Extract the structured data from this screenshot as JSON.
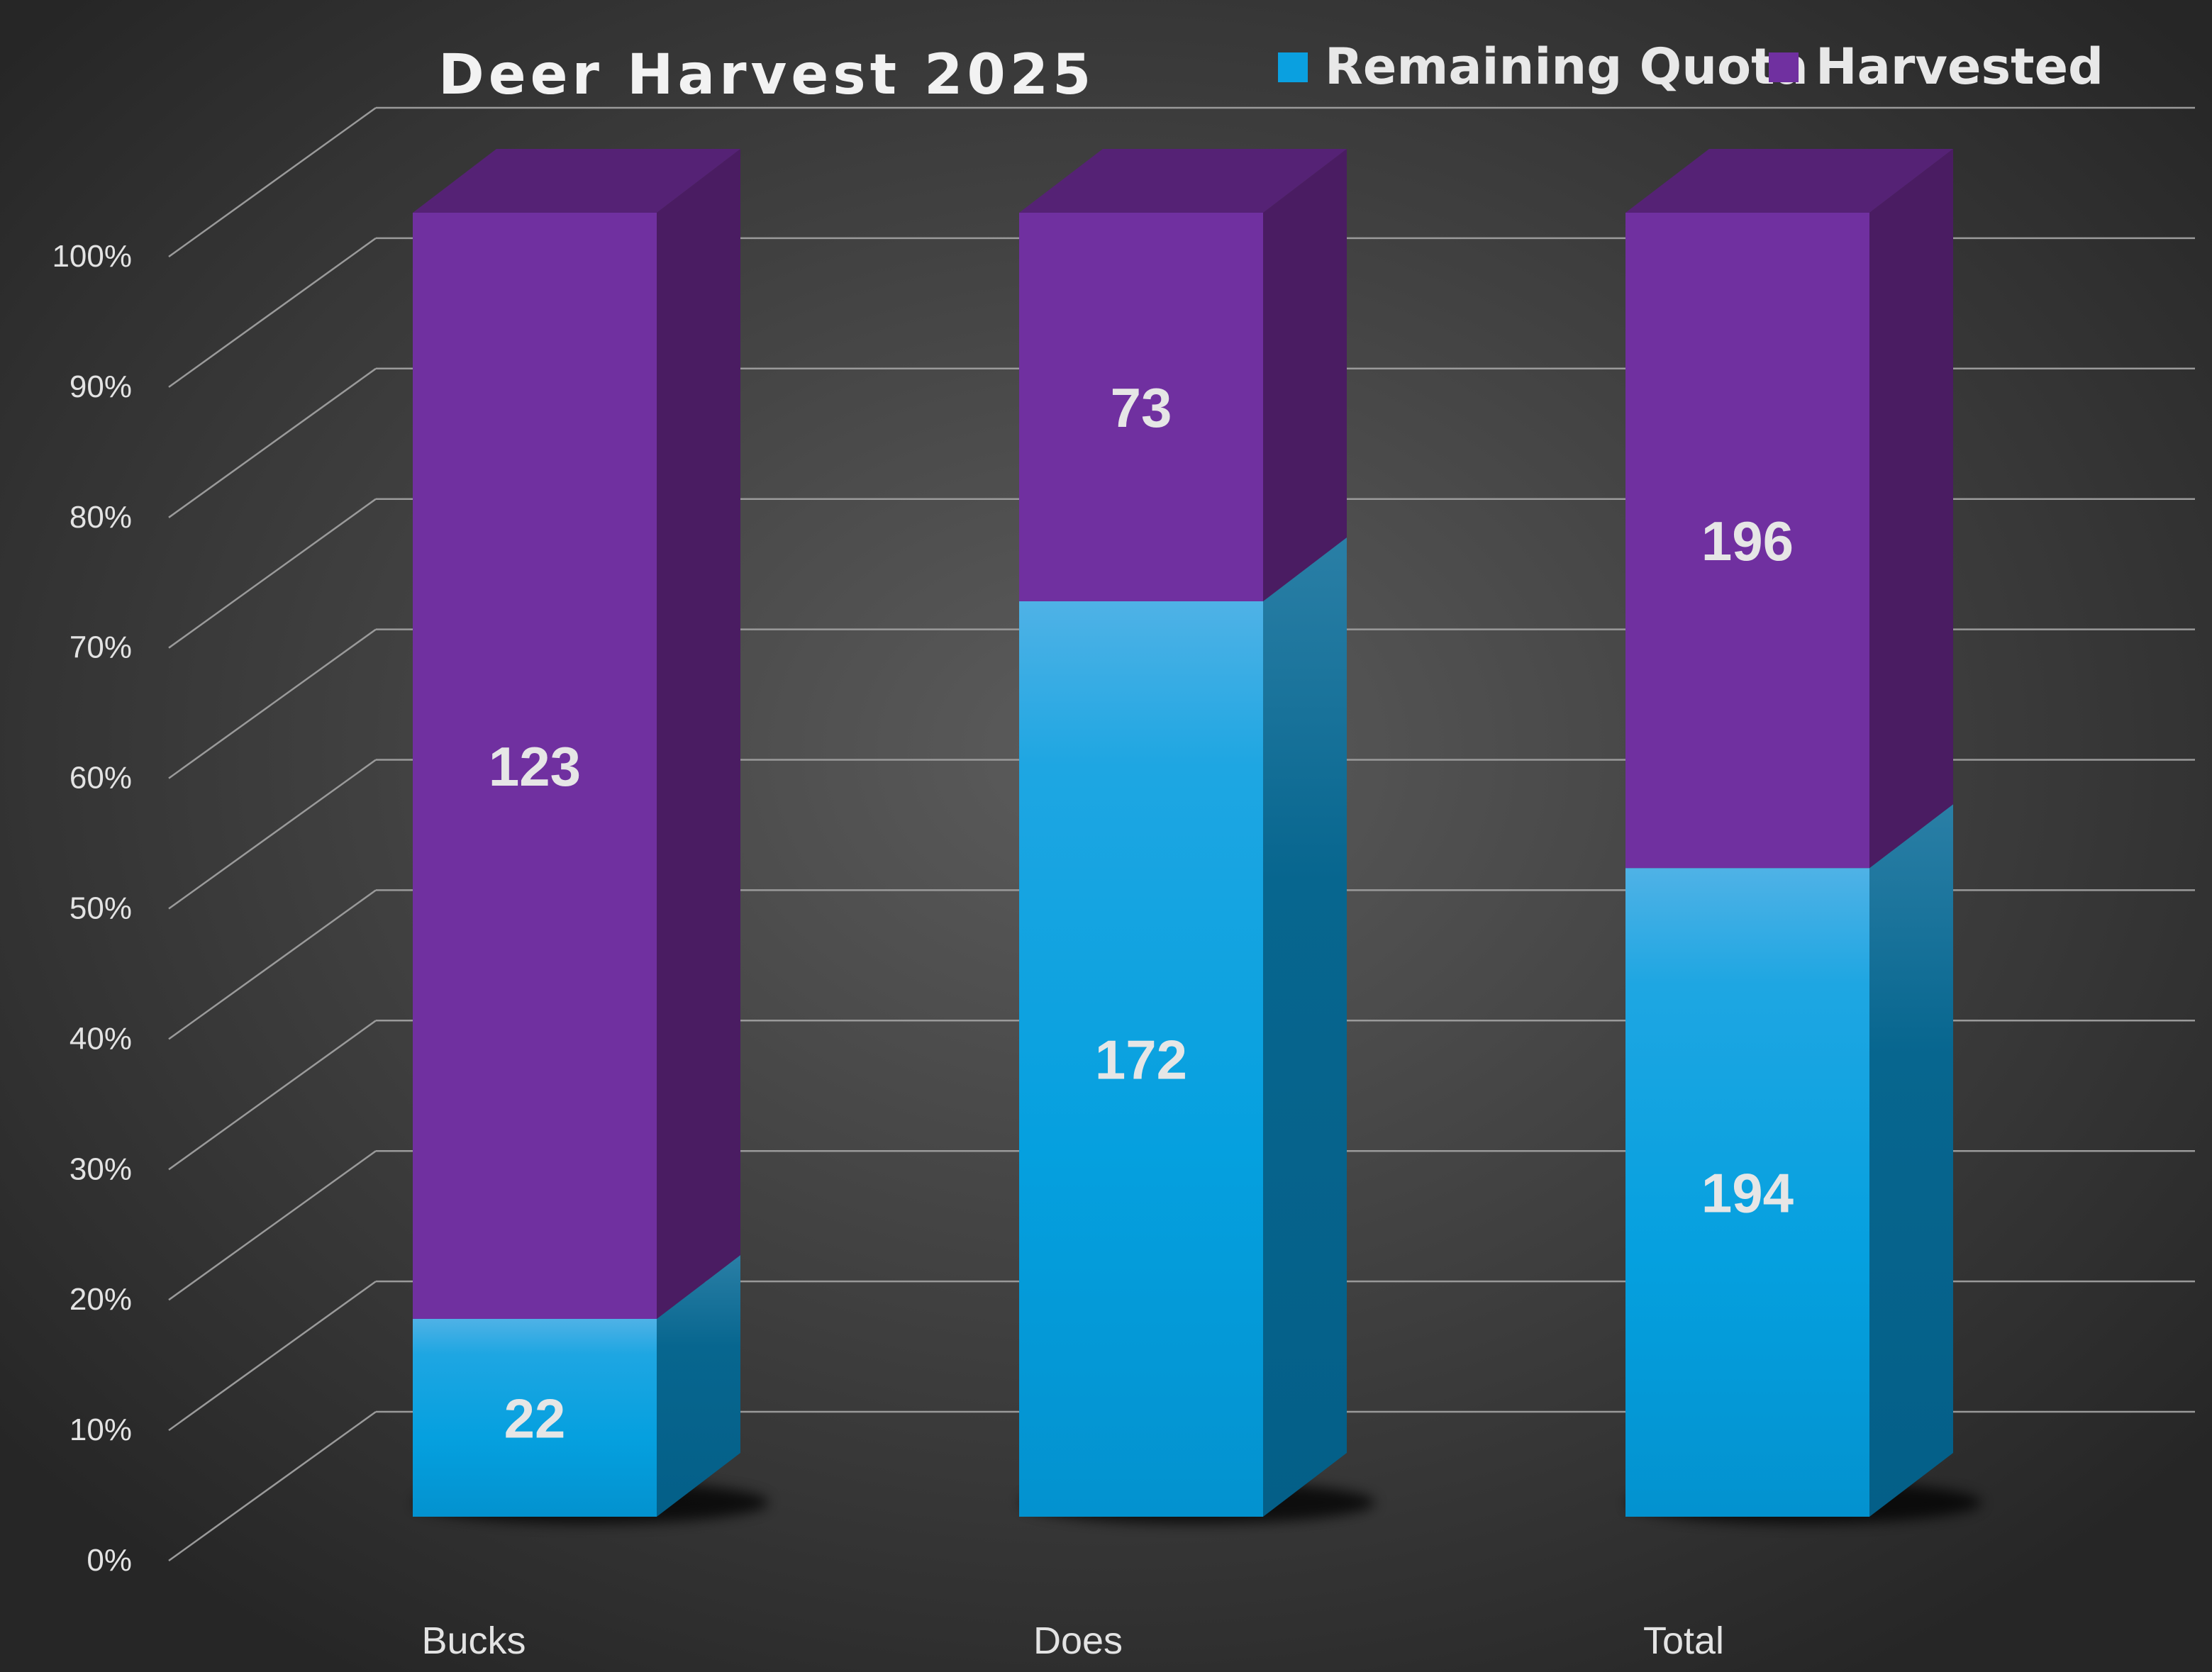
{
  "chart_data": {
    "type": "bar",
    "stacked": "percent",
    "three_d": true,
    "title": "Deer Harvest 2025",
    "categories": [
      "Bucks",
      "Does",
      "Total"
    ],
    "series": [
      {
        "name": "Remaining Quota",
        "values": [
          22,
          172,
          194
        ],
        "color": "#0aa0e0"
      },
      {
        "name": "Harvested",
        "values": [
          123,
          73,
          196
        ],
        "color": "#7030a0"
      }
    ],
    "ylim": [
      0,
      100
    ],
    "y_ticks": [
      "0%",
      "10%",
      "20%",
      "30%",
      "40%",
      "50%",
      "60%",
      "70%",
      "80%",
      "90%",
      "100%"
    ],
    "legend_position": "top-right",
    "grid": true,
    "background": "#2a2a2a"
  }
}
